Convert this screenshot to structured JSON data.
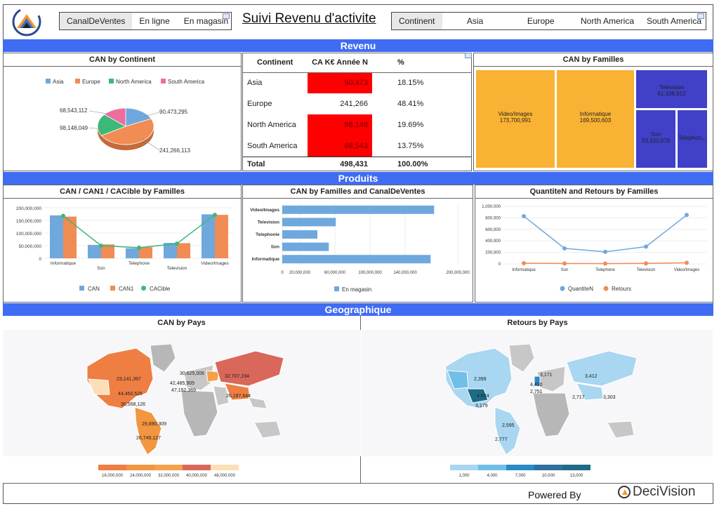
{
  "header": {
    "title": "Suivi Revenu d'activite",
    "canal_slicer": [
      "CanalDeVentes",
      "En ligne",
      "En magasin"
    ],
    "continent_slicer": [
      "Continent",
      "Asia",
      "Europe",
      "North America",
      "South America"
    ]
  },
  "bands": {
    "revenu": "Revenu",
    "produits": "Produits",
    "geo": "Geographique"
  },
  "colors": {
    "band": "#3f6cf3",
    "asia": "#6fa8dc",
    "europe": "#f08c54",
    "north_america": "#3cb878",
    "south_america": "#ec6e9c",
    "highlight": "#ff0000",
    "treemap_orange": "#f9b233",
    "treemap_blue": "#4040c8"
  },
  "can_by_continent": {
    "title": "CAN by Continent",
    "chart_data": {
      "type": "pie",
      "categories": [
        "Asia",
        "Europe",
        "North America",
        "South America"
      ],
      "values": [
        90473295,
        241266113,
        98148049,
        68543112
      ],
      "labels": [
        "90,473,295",
        "241,266,113",
        "98,148,049",
        "68,543,112"
      ],
      "legend": "top"
    }
  },
  "ca_table": {
    "headers": [
      "Continent",
      "CA K€ Année N",
      "%"
    ],
    "rows": [
      {
        "continent": "Asia",
        "ca": "90,473",
        "pct": "18.15%",
        "highlight": true
      },
      {
        "continent": "Europe",
        "ca": "241,266",
        "pct": "48.41%",
        "highlight": false
      },
      {
        "continent": "North America",
        "ca": "98,148",
        "pct": "19.69%",
        "highlight": true
      },
      {
        "continent": "South America",
        "ca": "68,543",
        "pct": "13.75%",
        "highlight": true
      }
    ],
    "total": {
      "label": "Total",
      "ca": "498,431",
      "pct": "100.00%"
    }
  },
  "can_by_familles": {
    "title": "CAN by Familles",
    "items": [
      {
        "name": "Video/Images",
        "value": "173,700,991"
      },
      {
        "name": "Informatique",
        "value": "169,500,603"
      },
      {
        "name": "Television",
        "value": "61,108,912"
      },
      {
        "name": "Son",
        "value": "53,102,079"
      },
      {
        "name": "Telephon...",
        "value": ""
      }
    ]
  },
  "can_can1": {
    "title": "CAN / CAN1 / CACible by Familles",
    "chart_data": {
      "type": "bar",
      "categories": [
        "Informatique",
        "Son",
        "Telephone",
        "Television",
        "Video/Images"
      ],
      "series": [
        {
          "name": "CAN",
          "values": [
            170000000,
            53000000,
            40000000,
            61000000,
            174000000
          ]
        },
        {
          "name": "CAN1",
          "values": [
            165000000,
            55000000,
            44000000,
            60000000,
            172000000
          ]
        },
        {
          "name": "CACible",
          "values": [
            168000000,
            50000000,
            42000000,
            58000000,
            172000000
          ]
        }
      ],
      "series_types": [
        "bar",
        "bar",
        "line"
      ],
      "yticks": [
        "200,000,000",
        "150,000,000",
        "100,000,000",
        "50,000,000",
        "0"
      ],
      "ylim": [
        0,
        200000000
      ],
      "legend": "bottom"
    }
  },
  "can_canal": {
    "title": "CAN by Familles and CanalDeVentes",
    "chart_data": {
      "type": "bar",
      "orientation": "horizontal",
      "categories": [
        "Video/Images",
        "Television",
        "Telephonie",
        "Son",
        "Informatique"
      ],
      "series": [
        {
          "name": "En magasin",
          "values": [
            173000000,
            61000000,
            40000000,
            53000000,
            169000000
          ]
        }
      ],
      "xticks": [
        "0",
        "20,000,000",
        "60,000,000",
        "100,000,000",
        "140,000,000",
        "200,000,000"
      ],
      "xlim": [
        0,
        200000000
      ],
      "legend": "bottom"
    }
  },
  "quantite": {
    "title": "QuantiteN and Retours by Familles",
    "chart_data": {
      "type": "line",
      "categories": [
        "Informatique",
        "Son",
        "Telephone",
        "Television",
        "Video/Images"
      ],
      "series": [
        {
          "name": "QuantiteN",
          "values": [
            830000,
            270000,
            210000,
            300000,
            850000
          ]
        },
        {
          "name": "Retours",
          "values": [
            12000,
            8000,
            6000,
            9000,
            20000
          ]
        }
      ],
      "yticks": [
        "1,000,000",
        "800,000",
        "600,000",
        "400,000",
        "200,000",
        "0"
      ],
      "ylim": [
        0,
        1000000
      ],
      "legend": "bottom"
    }
  },
  "can_pays": {
    "title": "CAN by Pays",
    "labels": [
      "23,141,397",
      "44,450,526",
      "30,558,126",
      "30,625,006",
      "42,485,905",
      "47,152,369",
      "32,707,194",
      "26,187,644",
      "29,890,309",
      "26,749,127"
    ],
    "scale": [
      "16,000,000",
      "24,000,000",
      "32,000,000",
      "40,000,000",
      "48,000,000"
    ],
    "scale_colors": [
      "#ee7e42",
      "#f3963f",
      "#f5a14a",
      "#d9685a",
      "#fddeb7"
    ]
  },
  "retours_pays": {
    "title": "Retours by Pays",
    "labels": [
      "2,399",
      "4,634",
      "3,179",
      "3,171",
      "4,410",
      "2,751",
      "3,412",
      "2,717",
      "3,303",
      "2,595",
      "2,777"
    ],
    "scale": [
      "1,000",
      "4,000",
      "7,000",
      "10,000",
      "13,000"
    ],
    "scale_colors": [
      "#a9d6f0",
      "#6fbfe8",
      "#2a8ac3",
      "#2f6f9e",
      "#1d6b85"
    ]
  },
  "footer": {
    "powered": "Powered By",
    "brand": "DeciVision"
  }
}
